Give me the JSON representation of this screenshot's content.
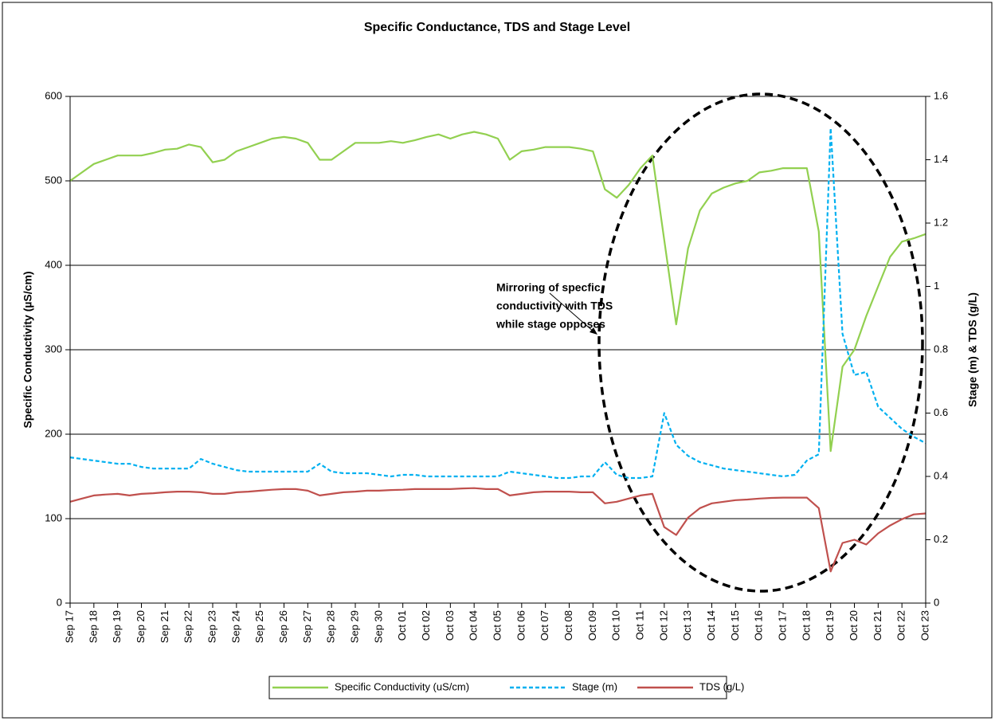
{
  "chart_data": {
    "type": "line",
    "title": "Specific Conductance, TDS and Stage Level",
    "y_label": "Specific Conductivity  (µS/cm)",
    "y2_label": "Stage (m) & TDS (g/L)",
    "annotation": [
      "Mirroring of specfic",
      "conductivity with TDS",
      "while stage opposes"
    ],
    "categories": [
      "Sep 17",
      null,
      "Sep 18",
      null,
      "Sep 19",
      null,
      "Sep 20",
      null,
      "Sep 21",
      null,
      "Sep 22",
      null,
      "Sep 23",
      null,
      "Sep 24",
      null,
      "Sep 25",
      null,
      "Sep 26",
      null,
      "Sep 27",
      null,
      "Sep 28",
      null,
      "Sep 29",
      null,
      "Sep 30",
      null,
      "Oct 01",
      null,
      "Oct 02",
      null,
      "Oct 03",
      null,
      "Oct 04",
      null,
      "Oct 05",
      null,
      "Oct 06",
      null,
      "Oct 07",
      null,
      "Oct 08",
      null,
      "Oct 09",
      null,
      "Oct 10",
      null,
      "Oct 11",
      null,
      "Oct 12",
      null,
      "Oct 13",
      null,
      "Oct 14",
      null,
      "Oct 15",
      null,
      "Oct 16",
      null,
      "Oct 17",
      null,
      "Oct 18",
      null,
      "Oct 19",
      null,
      "Oct 20",
      null,
      "Oct 21",
      null,
      "Oct 22",
      null,
      "Oct 23"
    ],
    "series": [
      {
        "name": "Specific Conductivity (uS/cm)",
        "color": "#92d050",
        "dash": false,
        "values": [
          500,
          510,
          520,
          525,
          530,
          530,
          530,
          533,
          537,
          538,
          543,
          540,
          522,
          525,
          535,
          540,
          545,
          550,
          552,
          550,
          545,
          525,
          525,
          535,
          545,
          545,
          545,
          547,
          545,
          548,
          552,
          555,
          550,
          555,
          558,
          555,
          550,
          525,
          535,
          537,
          540,
          540,
          540,
          538,
          535,
          490,
          480,
          495,
          515,
          530,
          430,
          330,
          420,
          465,
          485,
          492,
          497,
          500,
          510,
          512,
          515,
          515,
          515,
          440,
          180,
          280,
          300,
          340,
          375,
          410,
          428,
          432,
          437
        ]
      },
      {
        "name": "Stage (m)",
        "color": "#00b0f0",
        "dash": true,
        "axis": "y2",
        "values": [
          0.46,
          0.455,
          0.45,
          0.445,
          0.44,
          0.44,
          0.43,
          0.425,
          0.425,
          0.425,
          0.425,
          0.455,
          0.44,
          0.43,
          0.42,
          0.415,
          0.415,
          0.415,
          0.415,
          0.415,
          0.415,
          0.44,
          0.415,
          0.41,
          0.41,
          0.41,
          0.405,
          0.4,
          0.405,
          0.405,
          0.4,
          0.4,
          0.4,
          0.4,
          0.4,
          0.4,
          0.4,
          0.415,
          0.41,
          0.405,
          0.4,
          0.395,
          0.395,
          0.4,
          0.4,
          0.445,
          0.405,
          0.395,
          0.395,
          0.4,
          0.6,
          0.5,
          0.465,
          0.445,
          0.435,
          0.425,
          0.42,
          0.415,
          0.41,
          0.405,
          0.4,
          0.405,
          0.45,
          0.47,
          1.5,
          0.85,
          0.72,
          0.73,
          0.62,
          0.585,
          0.55,
          0.525,
          0.505
        ]
      },
      {
        "name": "TDS (g/L)",
        "color": "#c0504d",
        "dash": false,
        "axis": "y2",
        "values": [
          0.32,
          0.33,
          0.34,
          0.343,
          0.345,
          0.34,
          0.345,
          0.347,
          0.35,
          0.352,
          0.352,
          0.35,
          0.345,
          0.345,
          0.35,
          0.352,
          0.355,
          0.358,
          0.36,
          0.36,
          0.355,
          0.34,
          0.345,
          0.35,
          0.352,
          0.355,
          0.355,
          0.357,
          0.358,
          0.36,
          0.36,
          0.36,
          0.36,
          0.362,
          0.363,
          0.36,
          0.36,
          0.34,
          0.345,
          0.35,
          0.352,
          0.352,
          0.352,
          0.35,
          0.35,
          0.315,
          0.32,
          0.33,
          0.34,
          0.345,
          0.24,
          0.215,
          0.27,
          0.3,
          0.315,
          0.32,
          0.325,
          0.327,
          0.33,
          0.332,
          0.333,
          0.333,
          0.333,
          0.3,
          0.1,
          0.19,
          0.2,
          0.185,
          0.22,
          0.245,
          0.265,
          0.28,
          0.283
        ]
      }
    ],
    "ylim": [
      0,
      600
    ],
    "yticks": [
      0,
      100,
      200,
      300,
      400,
      500,
      600
    ],
    "y2lim": [
      0,
      1.6
    ],
    "y2ticks": [
      0,
      0.2,
      0.4,
      0.6,
      0.8,
      1,
      1.2,
      1.4,
      1.6
    ],
    "grid": true,
    "legend": "bottom"
  }
}
